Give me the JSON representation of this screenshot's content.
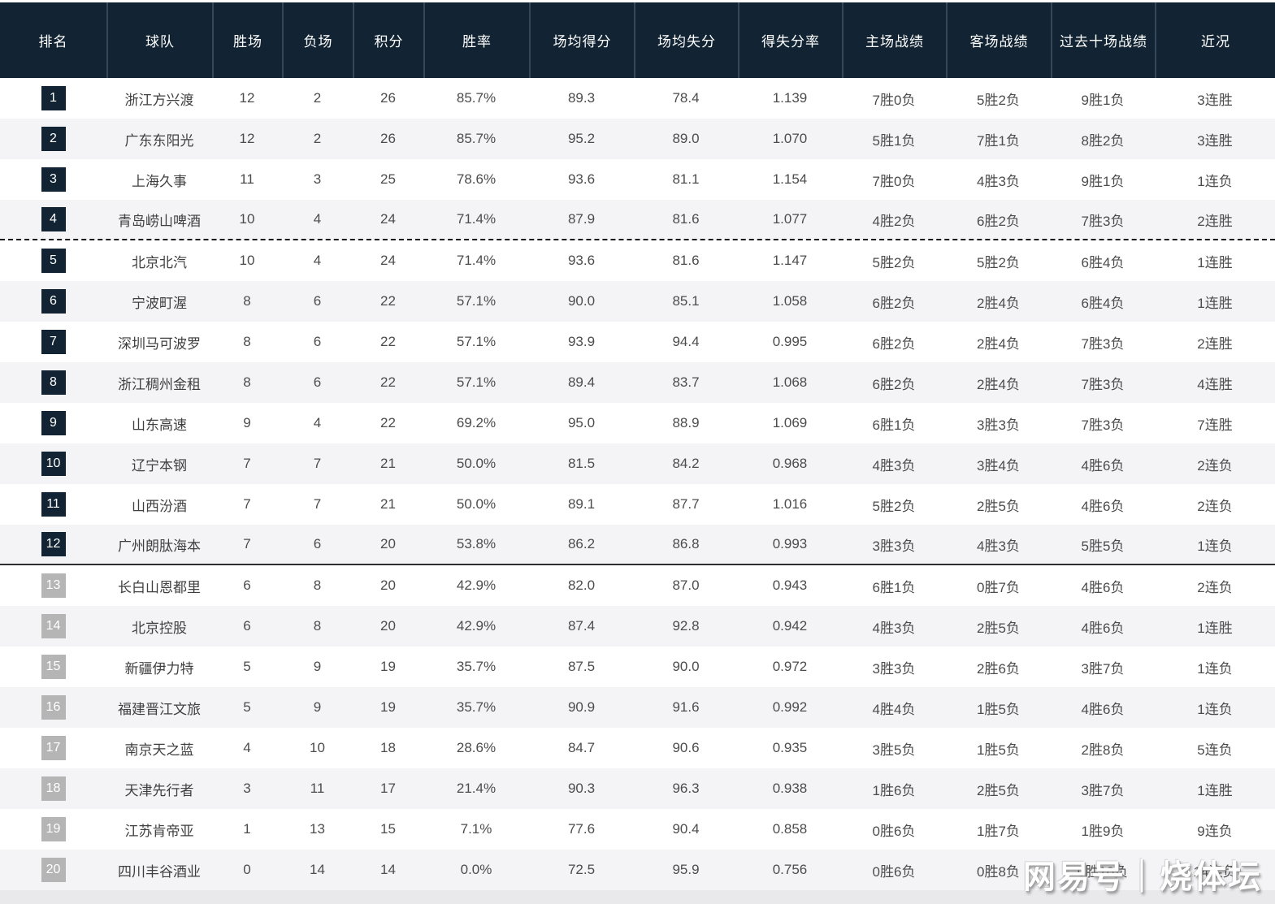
{
  "colors": {
    "header_bg": "#122433",
    "header_text": "#ffffff",
    "badge_dark": "#122433",
    "badge_gray": "#b5b5b5",
    "row_alt_bg": "#f4f4f6",
    "page_bg": "#e9e9eb",
    "divider_dashed": "#1a1a1a",
    "divider_solid": "#2e2e2e"
  },
  "watermark": {
    "text": "网易号｜烧体坛"
  },
  "table": {
    "columns": [
      {
        "key": "rank",
        "label": "排名"
      },
      {
        "key": "team",
        "label": "球队"
      },
      {
        "key": "wins",
        "label": "胜场"
      },
      {
        "key": "losses",
        "label": "负场"
      },
      {
        "key": "points",
        "label": "积分"
      },
      {
        "key": "win_pct",
        "label": "胜率"
      },
      {
        "key": "ppg",
        "label": "场均得分"
      },
      {
        "key": "papg",
        "label": "场均失分"
      },
      {
        "key": "ratio",
        "label": "得失分率"
      },
      {
        "key": "home",
        "label": "主场战绩"
      },
      {
        "key": "away",
        "label": "客场战绩"
      },
      {
        "key": "last10",
        "label": "过去十场战绩"
      },
      {
        "key": "recent",
        "label": "近况"
      }
    ],
    "rows": [
      {
        "rank": "1",
        "team": "浙江方兴渡",
        "wins": "12",
        "losses": "2",
        "points": "26",
        "win_pct": "85.7%",
        "ppg": "89.3",
        "papg": "78.4",
        "ratio": "1.139",
        "home": "7胜0负",
        "away": "5胜2负",
        "last10": "9胜1负",
        "recent": "3连胜",
        "badge_style": "dark",
        "divider": ""
      },
      {
        "rank": "2",
        "team": "广东东阳光",
        "wins": "12",
        "losses": "2",
        "points": "26",
        "win_pct": "85.7%",
        "ppg": "95.2",
        "papg": "89.0",
        "ratio": "1.070",
        "home": "5胜1负",
        "away": "7胜1负",
        "last10": "8胜2负",
        "recent": "3连胜",
        "badge_style": "dark",
        "divider": ""
      },
      {
        "rank": "3",
        "team": "上海久事",
        "wins": "11",
        "losses": "3",
        "points": "25",
        "win_pct": "78.6%",
        "ppg": "93.6",
        "papg": "81.1",
        "ratio": "1.154",
        "home": "7胜0负",
        "away": "4胜3负",
        "last10": "9胜1负",
        "recent": "1连负",
        "badge_style": "dark",
        "divider": ""
      },
      {
        "rank": "4",
        "team": "青岛崂山啤酒",
        "wins": "10",
        "losses": "4",
        "points": "24",
        "win_pct": "71.4%",
        "ppg": "87.9",
        "papg": "81.6",
        "ratio": "1.077",
        "home": "4胜2负",
        "away": "6胜2负",
        "last10": "7胜3负",
        "recent": "2连胜",
        "badge_style": "dark",
        "divider": "dashed"
      },
      {
        "rank": "5",
        "team": "北京北汽",
        "wins": "10",
        "losses": "4",
        "points": "24",
        "win_pct": "71.4%",
        "ppg": "93.6",
        "papg": "81.6",
        "ratio": "1.147",
        "home": "5胜2负",
        "away": "5胜2负",
        "last10": "6胜4负",
        "recent": "1连胜",
        "badge_style": "dark",
        "divider": ""
      },
      {
        "rank": "6",
        "team": "宁波町渥",
        "wins": "8",
        "losses": "6",
        "points": "22",
        "win_pct": "57.1%",
        "ppg": "90.0",
        "papg": "85.1",
        "ratio": "1.058",
        "home": "6胜2负",
        "away": "2胜4负",
        "last10": "6胜4负",
        "recent": "1连胜",
        "badge_style": "dark",
        "divider": ""
      },
      {
        "rank": "7",
        "team": "深圳马可波罗",
        "wins": "8",
        "losses": "6",
        "points": "22",
        "win_pct": "57.1%",
        "ppg": "93.9",
        "papg": "94.4",
        "ratio": "0.995",
        "home": "6胜2负",
        "away": "2胜4负",
        "last10": "7胜3负",
        "recent": "2连胜",
        "badge_style": "dark",
        "divider": ""
      },
      {
        "rank": "8",
        "team": "浙江稠州金租",
        "wins": "8",
        "losses": "6",
        "points": "22",
        "win_pct": "57.1%",
        "ppg": "89.4",
        "papg": "83.7",
        "ratio": "1.068",
        "home": "6胜2负",
        "away": "2胜4负",
        "last10": "7胜3负",
        "recent": "4连胜",
        "badge_style": "dark",
        "divider": ""
      },
      {
        "rank": "9",
        "team": "山东高速",
        "wins": "9",
        "losses": "4",
        "points": "22",
        "win_pct": "69.2%",
        "ppg": "95.0",
        "papg": "88.9",
        "ratio": "1.069",
        "home": "6胜1负",
        "away": "3胜3负",
        "last10": "7胜3负",
        "recent": "7连胜",
        "badge_style": "dark",
        "divider": ""
      },
      {
        "rank": "10",
        "team": "辽宁本钢",
        "wins": "7",
        "losses": "7",
        "points": "21",
        "win_pct": "50.0%",
        "ppg": "81.5",
        "papg": "84.2",
        "ratio": "0.968",
        "home": "4胜3负",
        "away": "3胜4负",
        "last10": "4胜6负",
        "recent": "2连负",
        "badge_style": "dark",
        "divider": ""
      },
      {
        "rank": "11",
        "team": "山西汾酒",
        "wins": "7",
        "losses": "7",
        "points": "21",
        "win_pct": "50.0%",
        "ppg": "89.1",
        "papg": "87.7",
        "ratio": "1.016",
        "home": "5胜2负",
        "away": "2胜5负",
        "last10": "4胜6负",
        "recent": "2连负",
        "badge_style": "dark",
        "divider": ""
      },
      {
        "rank": "12",
        "team": "广州朗肽海本",
        "wins": "7",
        "losses": "6",
        "points": "20",
        "win_pct": "53.8%",
        "ppg": "86.2",
        "papg": "86.8",
        "ratio": "0.993",
        "home": "3胜3负",
        "away": "4胜3负",
        "last10": "5胜5负",
        "recent": "1连负",
        "badge_style": "dark",
        "divider": "solid"
      },
      {
        "rank": "13",
        "team": "长白山恩都里",
        "wins": "6",
        "losses": "8",
        "points": "20",
        "win_pct": "42.9%",
        "ppg": "82.0",
        "papg": "87.0",
        "ratio": "0.943",
        "home": "6胜1负",
        "away": "0胜7负",
        "last10": "4胜6负",
        "recent": "2连负",
        "badge_style": "gray",
        "divider": ""
      },
      {
        "rank": "14",
        "team": "北京控股",
        "wins": "6",
        "losses": "8",
        "points": "20",
        "win_pct": "42.9%",
        "ppg": "87.4",
        "papg": "92.8",
        "ratio": "0.942",
        "home": "4胜3负",
        "away": "2胜5负",
        "last10": "4胜6负",
        "recent": "1连胜",
        "badge_style": "gray",
        "divider": ""
      },
      {
        "rank": "15",
        "team": "新疆伊力特",
        "wins": "5",
        "losses": "9",
        "points": "19",
        "win_pct": "35.7%",
        "ppg": "87.5",
        "papg": "90.0",
        "ratio": "0.972",
        "home": "3胜3负",
        "away": "2胜6负",
        "last10": "3胜7负",
        "recent": "1连负",
        "badge_style": "gray",
        "divider": ""
      },
      {
        "rank": "16",
        "team": "福建晋江文旅",
        "wins": "5",
        "losses": "9",
        "points": "19",
        "win_pct": "35.7%",
        "ppg": "90.9",
        "papg": "91.6",
        "ratio": "0.992",
        "home": "4胜4负",
        "away": "1胜5负",
        "last10": "4胜6负",
        "recent": "1连负",
        "badge_style": "gray",
        "divider": ""
      },
      {
        "rank": "17",
        "team": "南京天之蓝",
        "wins": "4",
        "losses": "10",
        "points": "18",
        "win_pct": "28.6%",
        "ppg": "84.7",
        "papg": "90.6",
        "ratio": "0.935",
        "home": "3胜5负",
        "away": "1胜5负",
        "last10": "2胜8负",
        "recent": "5连负",
        "badge_style": "gray",
        "divider": ""
      },
      {
        "rank": "18",
        "team": "天津先行者",
        "wins": "3",
        "losses": "11",
        "points": "17",
        "win_pct": "21.4%",
        "ppg": "90.3",
        "papg": "96.3",
        "ratio": "0.938",
        "home": "1胜6负",
        "away": "2胜5负",
        "last10": "3胜7负",
        "recent": "1连胜",
        "badge_style": "gray",
        "divider": ""
      },
      {
        "rank": "19",
        "team": "江苏肯帝亚",
        "wins": "1",
        "losses": "13",
        "points": "15",
        "win_pct": "7.1%",
        "ppg": "77.6",
        "papg": "90.4",
        "ratio": "0.858",
        "home": "0胜6负",
        "away": "1胜7负",
        "last10": "1胜9负",
        "recent": "9连负",
        "badge_style": "gray",
        "divider": ""
      },
      {
        "rank": "20",
        "team": "四川丰谷酒业",
        "wins": "0",
        "losses": "14",
        "points": "14",
        "win_pct": "0.0%",
        "ppg": "72.5",
        "papg": "95.9",
        "ratio": "0.756",
        "home": "0胜6负",
        "away": "0胜8负",
        "last10": "0胜10负",
        "recent": "14连负",
        "badge_style": "gray",
        "divider": ""
      }
    ]
  }
}
